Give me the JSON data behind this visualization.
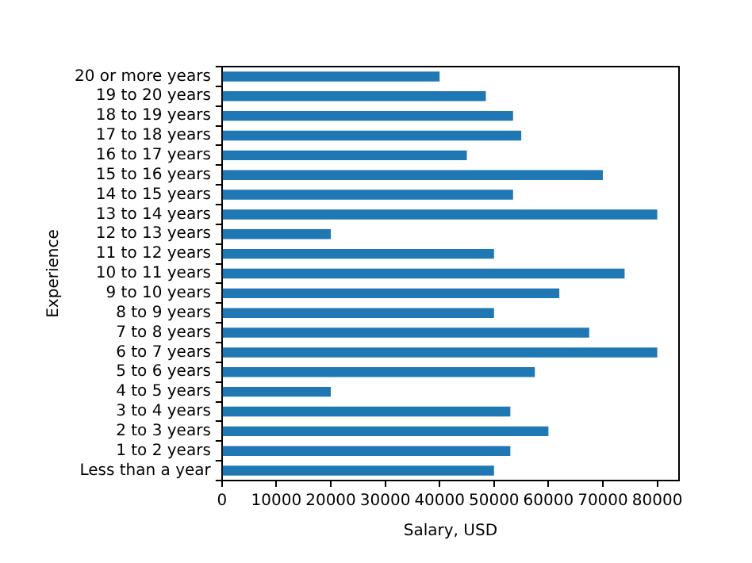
{
  "chart_data": {
    "type": "bar",
    "orientation": "horizontal",
    "xlabel": "Salary, USD",
    "ylabel": "Experience",
    "categories": [
      "20 or more years",
      "19 to 20 years",
      "18 to 19 years",
      "17 to 18 years",
      "16 to 17 years",
      "15 to 16 years",
      "14 to 15 years",
      "13 to 14 years",
      "12 to 13 years",
      "11 to 12 years",
      "10 to 11 years",
      "9 to 10 years",
      "8 to 9 years",
      "7 to 8 years",
      "6 to 7 years",
      "5 to 6 years",
      "4 to 5 years",
      "3 to 4 years",
      "2 to 3 years",
      "1 to 2 years",
      "Less than a year"
    ],
    "values": [
      40000,
      48500,
      53500,
      55000,
      45000,
      70000,
      53500,
      80000,
      20000,
      50000,
      74000,
      62000,
      50000,
      67500,
      80000,
      57500,
      20000,
      53000,
      60000,
      53000,
      50000
    ],
    "color": "#1f77b4",
    "xlim": [
      0,
      84000
    ],
    "xticks": [
      0,
      10000,
      20000,
      30000,
      40000,
      50000,
      60000,
      70000,
      80000
    ],
    "grid": false,
    "legend": false
  }
}
